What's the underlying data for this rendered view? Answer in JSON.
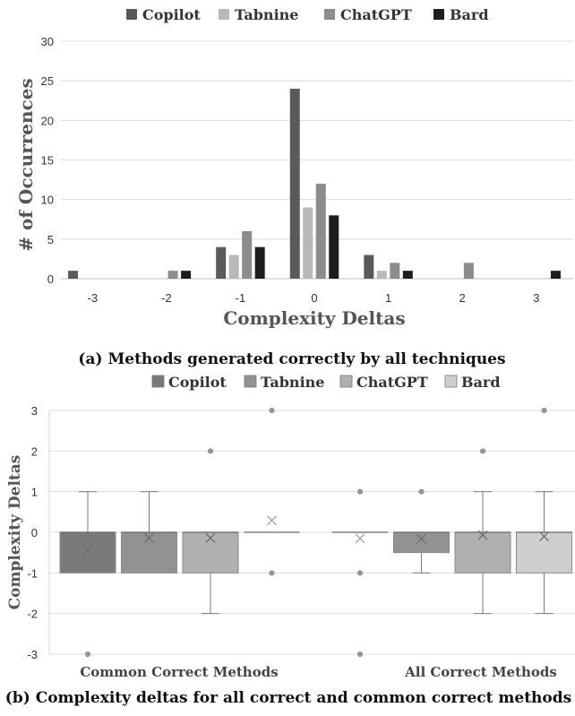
{
  "chart_data": [
    {
      "type": "bar",
      "categories": [
        "-3",
        "-2",
        "-1",
        "0",
        "1",
        "2",
        "3"
      ],
      "series": [
        {
          "name": "Copilot",
          "values": [
            1,
            0,
            4,
            24,
            3,
            0,
            0
          ],
          "color": "#5a5a5a"
        },
        {
          "name": "Tabnine",
          "values": [
            0,
            0,
            3,
            9,
            1,
            0,
            0
          ],
          "color": "#b8b8b8"
        },
        {
          "name": "ChatGPT",
          "values": [
            0,
            1,
            6,
            12,
            2,
            2,
            0
          ],
          "color": "#8c8c8c"
        },
        {
          "name": "Bard",
          "values": [
            0,
            1,
            4,
            8,
            1,
            0,
            1
          ],
          "color": "#1e1e1e"
        }
      ],
      "xlabel": "Complexity Deltas",
      "ylabel": "# of Occurrences",
      "ylim": [
        0,
        30
      ],
      "yticks": [
        "0",
        "5",
        "10",
        "15",
        "20",
        "25",
        "30"
      ],
      "grid": true,
      "legend": "top",
      "caption": "(a) Methods generated correctly by all techniques"
    },
    {
      "type": "box",
      "categories": [
        "Common Correct Methods",
        "All Correct Methods"
      ],
      "series": [
        {
          "name": "Copilot",
          "color": "#7a7a7a",
          "boxes": [
            {
              "min": -1,
              "q1": -1,
              "median": 0,
              "q3": 0,
              "max": 1,
              "mean": -0.43,
              "outliers": [
                -3
              ]
            },
            {
              "min": 0,
              "q1": 0,
              "median": 0,
              "q3": 0,
              "max": 0,
              "mean": -0.15,
              "outliers": [
                1,
                -1,
                -3
              ]
            }
          ]
        },
        {
          "name": "Tabnine",
          "color": "#929292",
          "boxes": [
            {
              "min": -1,
              "q1": -1,
              "median": 0,
              "q3": 0,
              "max": 1,
              "mean": -0.14,
              "outliers": []
            },
            {
              "min": -1,
              "q1": -0.5,
              "median": 0,
              "q3": 0,
              "max": 0,
              "mean": -0.16,
              "outliers": [
                1
              ]
            }
          ]
        },
        {
          "name": "ChatGPT",
          "color": "#b0b0b0",
          "boxes": [
            {
              "min": -2,
              "q1": -1,
              "median": 0,
              "q3": 0,
              "max": 0,
              "mean": -0.14,
              "outliers": [
                2
              ]
            },
            {
              "min": -2,
              "q1": -1,
              "median": 0,
              "q3": 0,
              "max": 1,
              "mean": -0.07,
              "outliers": [
                2
              ]
            }
          ]
        },
        {
          "name": "Bard",
          "color": "#cfcfcf",
          "boxes": [
            {
              "min": 0,
              "q1": 0,
              "median": 0,
              "q3": 0,
              "max": 0,
              "mean": 0.29,
              "outliers": [
                3,
                -1
              ]
            },
            {
              "min": -2,
              "q1": -1,
              "median": 0,
              "q3": 0,
              "max": 1,
              "mean": -0.1,
              "outliers": [
                3
              ]
            }
          ]
        }
      ],
      "ylabel": "Complexity Deltas",
      "ylim": [
        -3,
        3
      ],
      "yticks": [
        "-3",
        "-2",
        "-1",
        "0",
        "1",
        "2",
        "3"
      ],
      "grid": true,
      "legend": "top",
      "caption": "(b) Complexity deltas for all correct and common correct methods"
    }
  ]
}
